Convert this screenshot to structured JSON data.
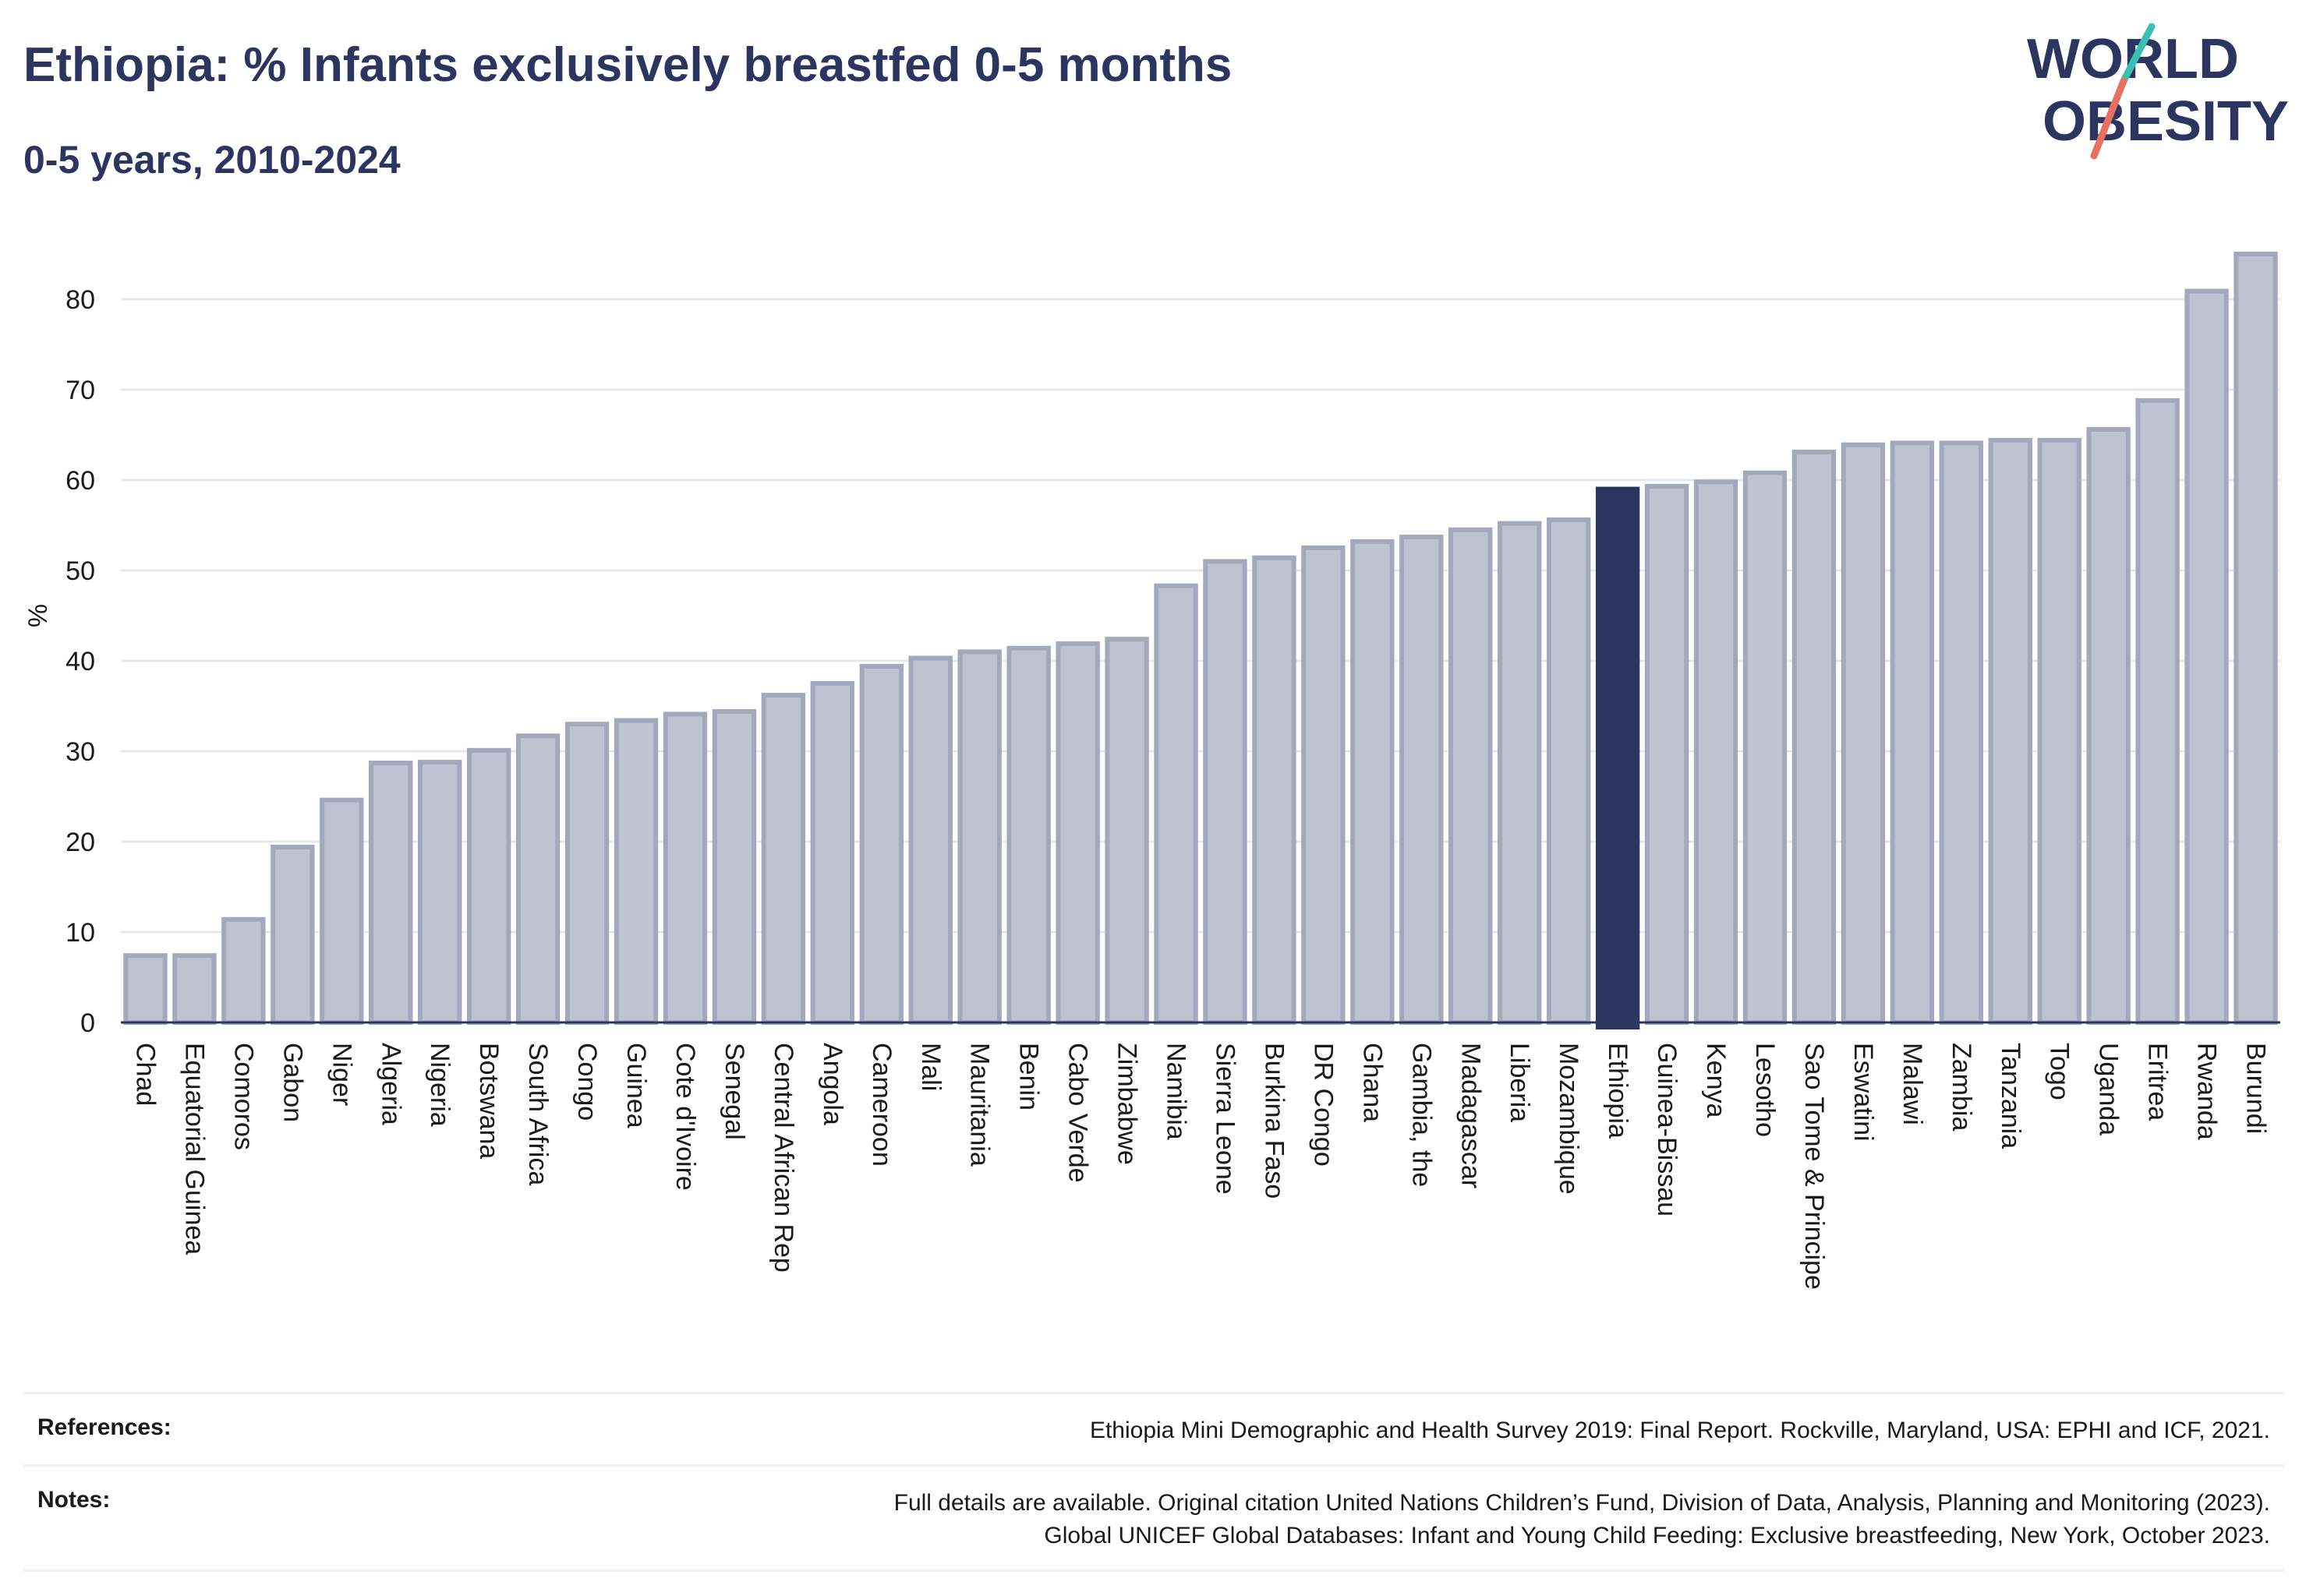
{
  "header": {
    "title": "Ethiopia: % Infants exclusively breastfed 0-5 months",
    "subtitle": "0-5 years, 2010-2024"
  },
  "logo": {
    "line1": "WORLD",
    "line2": "OBESITY",
    "colors": {
      "text": "#2b3560",
      "slash_top": "#3bbfb5",
      "slash_bottom": "#e8705e"
    }
  },
  "chart_data": {
    "type": "bar",
    "title": "Ethiopia: % Infants exclusively breastfed 0-5 months",
    "subtitle": "0-5 years, 2010-2024",
    "xlabel": "",
    "ylabel": "%",
    "ylim": [
      0,
      85
    ],
    "yticks": [
      0,
      10,
      20,
      30,
      40,
      50,
      60,
      70,
      80
    ],
    "grid": true,
    "highlight": "Ethiopia",
    "colors": {
      "bar": "#bfc3d1",
      "bar_edge": "#a3a8bd",
      "highlight": "#2b3560",
      "grid": "#e6e8ee",
      "axis": "#2b3560"
    },
    "categories": [
      "Chad",
      "Equatorial Guinea",
      "Comoros",
      "Gabon",
      "Niger",
      "Algeria",
      "Nigeria",
      "Botswana",
      "South Africa",
      "Congo",
      "Guinea",
      "Cote d'Ivoire",
      "Senegal",
      "Central African Rep",
      "Angola",
      "Cameroon",
      "Mali",
      "Mauritania",
      "Benin",
      "Cabo Verde",
      "Zimbabwe",
      "Namibia",
      "Sierra Leone",
      "Burkina Faso",
      "DR Congo",
      "Ghana",
      "Gambia, the",
      "Madagascar",
      "Liberia",
      "Mozambique",
      "Ethiopia",
      "Guinea-Bissau",
      "Kenya",
      "Lesotho",
      "Sao Tome & Principe",
      "Eswatini",
      "Malawi",
      "Zambia",
      "Tanzania",
      "Togo",
      "Uganda",
      "Eritrea",
      "Rwanda",
      "Burundi"
    ],
    "values": [
      7.4,
      7.4,
      11.4,
      19.4,
      24.6,
      28.7,
      28.8,
      30.1,
      31.7,
      33.0,
      33.4,
      34.1,
      34.4,
      36.2,
      37.5,
      39.4,
      40.3,
      41.0,
      41.4,
      41.9,
      42.4,
      48.3,
      51.0,
      51.4,
      52.5,
      53.2,
      53.7,
      54.5,
      55.2,
      55.6,
      59.0,
      59.3,
      59.8,
      60.8,
      63.1,
      63.9,
      64.1,
      64.1,
      64.4,
      64.4,
      65.6,
      68.8,
      80.9,
      85.0
    ]
  },
  "footer": {
    "references_label": "References:",
    "references_text": "Ethiopia Mini Demographic and Health Survey 2019: Final Report. Rockville, Maryland, USA: EPHI and ICF, 2021.",
    "notes_label": "Notes:",
    "notes_line1": "Full details are available. Original citation United Nations Children’s Fund, Division of Data, Analysis, Planning and Monitoring (2023).",
    "notes_line2": "Global UNICEF Global Databases: Infant and Young Child Feeding: Exclusive breastfeeding, New York, October 2023."
  }
}
